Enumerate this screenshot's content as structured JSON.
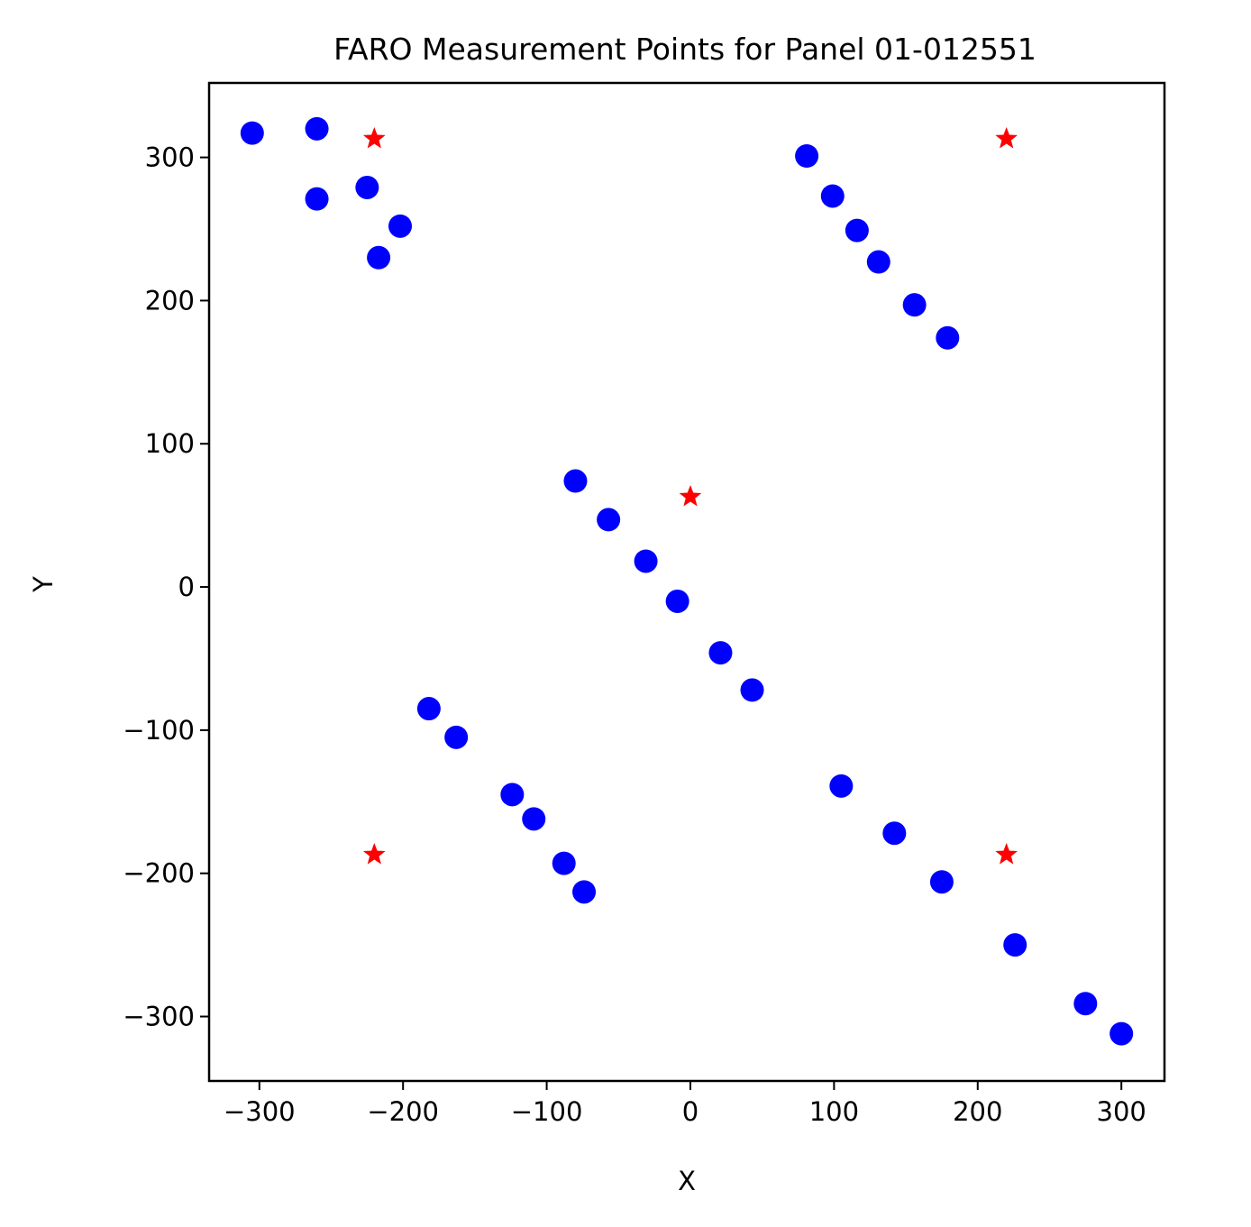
{
  "chart_data": {
    "type": "scatter",
    "title": "FARO Measurement Points for Panel 01-012551",
    "xlabel": "X",
    "ylabel": "Y",
    "xlim": [
      -335,
      330
    ],
    "ylim": [
      -345,
      352
    ],
    "xticks": [
      -300,
      -200,
      -100,
      0,
      100,
      200,
      300
    ],
    "yticks": [
      -300,
      -200,
      -100,
      0,
      100,
      200,
      300
    ],
    "xtick_labels": [
      "−300",
      "−200",
      "−100",
      "0",
      "100",
      "200",
      "300"
    ],
    "ytick_labels": [
      "−300",
      "−200",
      "−100",
      "0",
      "100",
      "200",
      "300"
    ],
    "grid": false,
    "legend": "none",
    "series": [
      {
        "marker": "circle",
        "color": "#0000ff",
        "points": [
          {
            "x": -305,
            "y": 317
          },
          {
            "x": -260,
            "y": 320
          },
          {
            "x": -260,
            "y": 271
          },
          {
            "x": -225,
            "y": 279
          },
          {
            "x": -202,
            "y": 252
          },
          {
            "x": -217,
            "y": 230
          },
          {
            "x": 81,
            "y": 301
          },
          {
            "x": 99,
            "y": 273
          },
          {
            "x": 116,
            "y": 249
          },
          {
            "x": 131,
            "y": 227
          },
          {
            "x": 156,
            "y": 197
          },
          {
            "x": 179,
            "y": 174
          },
          {
            "x": -80,
            "y": 74
          },
          {
            "x": -57,
            "y": 47
          },
          {
            "x": -31,
            "y": 18
          },
          {
            "x": -9,
            "y": -10
          },
          {
            "x": 21,
            "y": -46
          },
          {
            "x": 43,
            "y": -72
          },
          {
            "x": -182,
            "y": -85
          },
          {
            "x": -163,
            "y": -105
          },
          {
            "x": -124,
            "y": -145
          },
          {
            "x": -109,
            "y": -162
          },
          {
            "x": -88,
            "y": -193
          },
          {
            "x": -74,
            "y": -213
          },
          {
            "x": 105,
            "y": -139
          },
          {
            "x": 142,
            "y": -172
          },
          {
            "x": 175,
            "y": -206
          },
          {
            "x": 226,
            "y": -250
          },
          {
            "x": 275,
            "y": -291
          },
          {
            "x": 300,
            "y": -312
          }
        ]
      },
      {
        "marker": "star",
        "color": "#ff0000",
        "points": [
          {
            "x": -220,
            "y": 313
          },
          {
            "x": 220,
            "y": 313
          },
          {
            "x": 0,
            "y": 63
          },
          {
            "x": -220,
            "y": -187
          },
          {
            "x": 220,
            "y": -187
          }
        ]
      }
    ]
  }
}
